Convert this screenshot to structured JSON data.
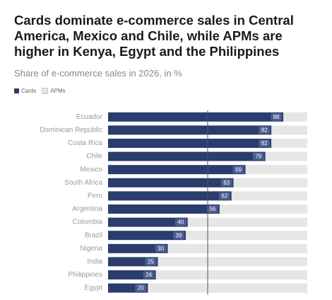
{
  "chart_data": {
    "type": "stacked-bar-horizontal",
    "title": "Cards dominate e-commerce sales in Central America, Mexico and Chile, while APMs are higher in Kenya, Egypt and the Philippines",
    "subtitle": "Share of e-commerce sales in 2026, in %",
    "categories": [
      "Ecuador",
      "Dominican Republic",
      "Costa Rica",
      "Chile",
      "Mexico",
      "South Africa",
      "Peru",
      "Argentina",
      "Colombia",
      "Brazil",
      "Nigeria",
      "India",
      "Philippines",
      "Egypt"
    ],
    "series": [
      {
        "name": "Cards",
        "color": "#2b3d6e",
        "values": [
          88,
          82,
          82,
          79,
          69,
          63,
          62,
          56,
          40,
          39,
          30,
          25,
          24,
          20
        ]
      },
      {
        "name": "APMs",
        "color": "#e6e6e6",
        "values": [
          12,
          18,
          18,
          21,
          31,
          37,
          38,
          44,
          60,
          61,
          70,
          75,
          76,
          80
        ]
      }
    ],
    "xlim": [
      0,
      100
    ],
    "reference_line": 50
  }
}
